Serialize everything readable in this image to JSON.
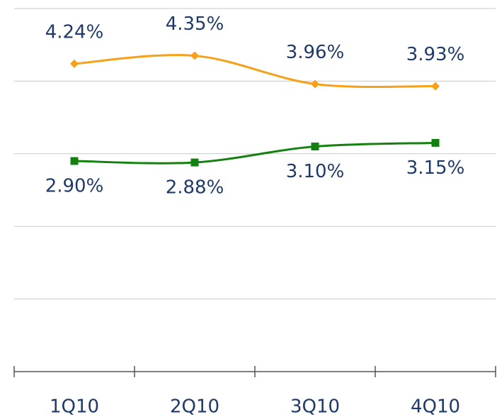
{
  "chart_data": {
    "type": "line",
    "categories": [
      "1Q10",
      "2Q10",
      "3Q10",
      "4Q10"
    ],
    "series": [
      {
        "color": "#f7a11a",
        "marker": "diamond",
        "label_position": "above",
        "values": [
          4.24,
          4.35,
          3.96,
          3.93
        ],
        "value_labels": [
          "4.24%",
          "4.35%",
          "3.96%",
          "3.93%"
        ]
      },
      {
        "color": "#13800f",
        "marker": "square",
        "label_position": "below",
        "values": [
          2.9,
          2.88,
          3.1,
          3.15
        ],
        "value_labels": [
          "2.90%",
          "2.88%",
          "3.10%",
          "3.15%"
        ]
      }
    ],
    "ylim": [
      0,
      5
    ],
    "yticks": [
      0,
      1,
      2,
      3,
      4,
      5
    ],
    "grid": true,
    "smooth": true
  }
}
